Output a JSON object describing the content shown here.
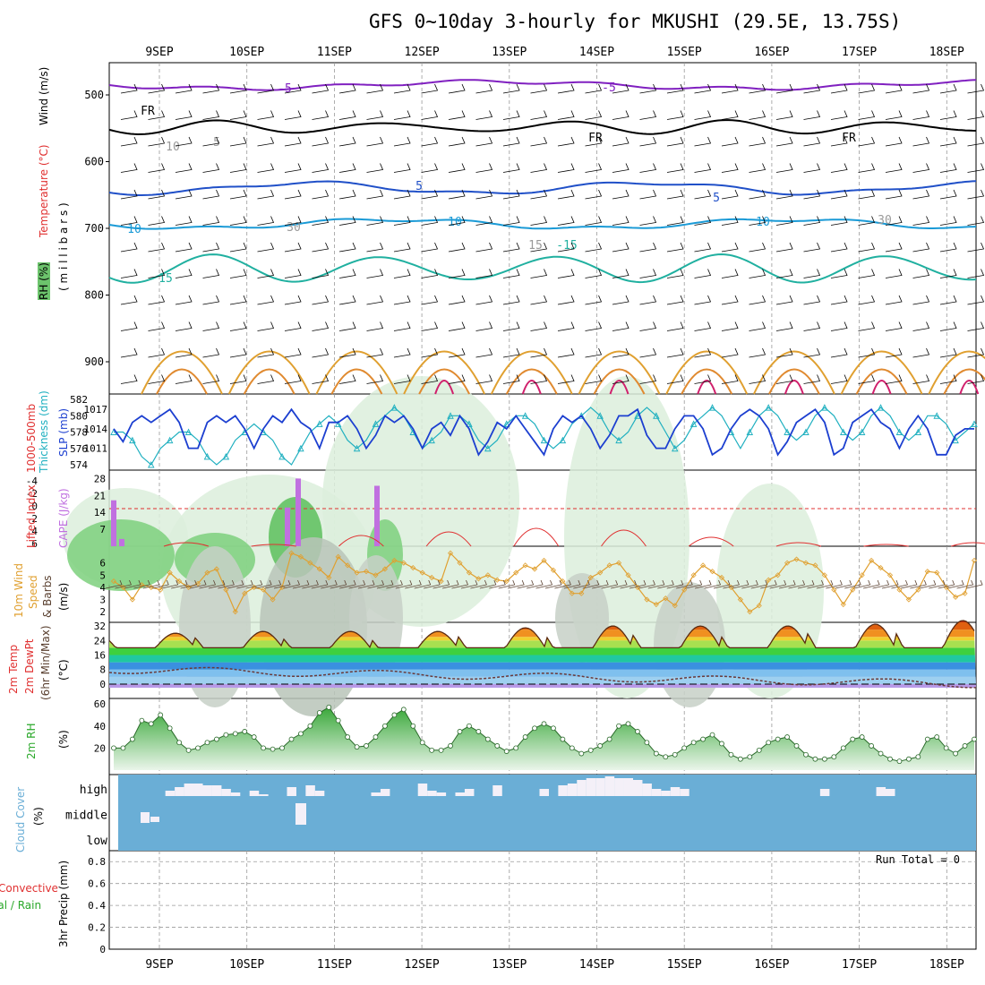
{
  "title": "GFS 0~10day 3-hourly for MKUSHI (29.5E, 13.75S)",
  "dates": [
    "9SEP",
    "10SEP",
    "11SEP",
    "12SEP",
    "13SEP",
    "14SEP",
    "15SEP",
    "16SEP",
    "17SEP",
    "18SEP"
  ],
  "colors": {
    "rh": "#6cc36c",
    "temp5": "#2050c8",
    "temp10": "#1a9ad6",
    "temp15": "#20b0a0",
    "warm": "#e0a030",
    "hot": "#d0206c",
    "cold": "#8020c0",
    "slp": "#1c3fd0",
    "thick": "#20b0c0",
    "cape": "#c070e0",
    "li": "#e03030",
    "wind": "#e0a030",
    "barb": "#5a4030",
    "rh2m": "#5aa85a",
    "cloud": "#6aaed6"
  },
  "panels": {
    "upper": {
      "axis_label_rh": "RH (%)",
      "axis_label_temp": "Temperature (°C)",
      "axis_label_wind": "Wind (m/s)",
      "axis_label_mb": "( m i l l i b a r s )",
      "pressure_ticks": [
        500,
        600,
        700,
        800,
        900
      ],
      "contour_labels": [
        "FR",
        "FR",
        "FR",
        "-5",
        "-5",
        "5",
        "5",
        "10",
        "10",
        "10",
        "15",
        "-15",
        "15",
        "30",
        "30",
        "10",
        "5"
      ]
    },
    "slp": {
      "label_left": "Thickness (dm)",
      "label_left2": "1000-500mb",
      "label_right": "SLP (mb)",
      "left_ticks": [
        "582",
        "580",
        "578",
        "576",
        "574"
      ],
      "right_ticks": [
        "1017",
        "1014",
        "1011"
      ]
    },
    "cape": {
      "label_li": "Lifted Index",
      "label_cape": "CAPE (J/kg)",
      "li_ticks": [
        "-4",
        "-2",
        "0",
        "2",
        "4",
        "6"
      ],
      "cape_ticks": [
        "28",
        "21",
        "14",
        "7"
      ]
    },
    "wind10": {
      "label": "10m Wind",
      "label2": "Speed",
      "label3": "& Barbs",
      "unit": "(m/s)",
      "ticks": [
        "6",
        "5",
        "4",
        "3",
        "2"
      ]
    },
    "temp2m": {
      "label": "2m Temp",
      "label2": "2m DewPt",
      "label3": "(6hr Min/Max)",
      "unit": "(°C)",
      "ticks": [
        "32",
        "24",
        "16",
        "8",
        "0"
      ]
    },
    "rh2m": {
      "label": "2m RH",
      "unit": "(%)",
      "ticks": [
        "60",
        "40",
        "20"
      ]
    },
    "cloud": {
      "label": "Cloud Cover",
      "unit": "(%)",
      "levels": [
        "high",
        "middle",
        "low"
      ]
    },
    "precip": {
      "label": "3hr Precip (mm)",
      "label_total": "Total / Rain",
      "label_conv": "Convective",
      "ticks": [
        "0.8",
        "0.6",
        "0.4",
        "0.2",
        "0"
      ],
      "run_total": "Run Total = 0"
    }
  },
  "chart_data": [
    {
      "type": "line",
      "panel": "slp_thickness",
      "x_step_hours": 3,
      "slp_mb": [
        1014,
        1012,
        1015,
        1016,
        1015,
        1016,
        1017,
        1015,
        1011,
        1011,
        1015,
        1016,
        1015,
        1016,
        1014,
        1011,
        1014,
        1016,
        1015,
        1017,
        1015,
        1014,
        1011,
        1015,
        1015,
        1016,
        1014,
        1011,
        1013,
        1016,
        1015,
        1016,
        1014,
        1011,
        1014,
        1015,
        1013,
        1016,
        1014,
        1010,
        1012,
        1015,
        1014,
        1016,
        1014,
        1012,
        1010,
        1014,
        1016,
        1015,
        1016,
        1014,
        1011,
        1013,
        1016,
        1016,
        1017,
        1013,
        1011,
        1011,
        1014,
        1016,
        1016,
        1014,
        1010,
        1011,
        1014,
        1016,
        1017,
        1016,
        1014,
        1010,
        1012,
        1015,
        1016,
        1017,
        1015,
        1010,
        1011,
        1015,
        1016,
        1017,
        1015,
        1014,
        1011,
        1014,
        1016,
        1014,
        1010,
        1010,
        1013,
        1014,
        1014
      ],
      "thickness_dm": [
        578,
        578,
        577,
        575,
        574,
        576,
        577,
        578,
        578,
        577,
        575,
        574,
        575,
        577,
        578,
        579,
        578,
        577,
        575,
        574,
        576,
        578,
        579,
        580,
        579,
        577,
        576,
        577,
        579,
        580,
        581,
        580,
        578,
        576,
        577,
        578,
        580,
        580,
        579,
        577,
        576,
        577,
        579,
        580,
        580,
        579,
        577,
        576,
        577,
        579,
        580,
        581,
        580,
        578,
        577,
        578,
        580,
        581,
        580,
        578,
        576,
        577,
        579,
        580,
        581,
        580,
        578,
        576,
        578,
        580,
        581,
        580,
        578,
        577,
        578,
        580,
        581,
        580,
        578,
        577,
        578,
        580,
        581,
        580,
        578,
        577,
        578,
        580,
        580,
        579,
        577,
        578,
        579
      ]
    },
    {
      "type": "bar",
      "panel": "cape_lifted_index",
      "cape_spikes": [
        {
          "day": "9SEP",
          "cape": 19
        },
        {
          "day": "9SEP",
          "cape": 3
        },
        {
          "day": "10SEP",
          "cape": 16
        },
        {
          "day": "10SEP",
          "cape": 28
        },
        {
          "day": "11SEP",
          "cape": 25
        }
      ]
    },
    {
      "type": "line",
      "panel": "wind10m",
      "speed_ms": [
        4.5,
        4.0,
        3.0,
        4.2,
        4.0,
        3.8,
        5.2,
        4.5,
        4.0,
        4.3,
        5.2,
        5.5,
        3.8,
        2.0,
        3.5,
        4.0,
        3.8,
        3.0,
        4.0,
        6.8,
        6.5,
        6.0,
        5.5,
        4.8,
        6.5,
        5.8,
        5.2,
        5.3,
        5.0,
        5.5,
        6.2,
        6.0,
        5.6,
        5.2,
        4.8,
        4.5,
        6.8,
        6.0,
        5.2,
        4.7,
        5.0,
        4.6,
        4.5,
        5.2,
        5.8,
        5.5,
        6.2,
        5.4,
        4.5,
        3.5,
        3.5,
        4.8,
        5.2,
        5.8,
        6.0,
        5.0,
        4.0,
        3.0,
        2.6,
        3.1,
        2.5,
        3.8,
        5.0,
        5.8,
        5.3,
        4.8,
        4.0,
        3.0,
        2.0,
        2.5,
        4.6,
        5.0,
        6.0,
        6.3,
        6.0,
        5.8,
        5.0,
        3.8,
        2.6,
        3.8,
        5.0,
        6.2,
        5.6,
        5.0,
        3.8,
        3.0,
        3.8,
        5.3,
        5.2,
        4.0,
        3.2,
        3.5,
        6.2
      ]
    },
    {
      "type": "line",
      "panel": "rh2m",
      "rh_pct": [
        20,
        20,
        28,
        45,
        42,
        50,
        38,
        25,
        18,
        20,
        25,
        28,
        32,
        33,
        35,
        30,
        20,
        19,
        20,
        28,
        33,
        40,
        52,
        57,
        45,
        30,
        21,
        22,
        30,
        40,
        50,
        55,
        40,
        25,
        18,
        18,
        22,
        35,
        40,
        35,
        28,
        22,
        17,
        20,
        30,
        38,
        42,
        38,
        28,
        20,
        15,
        18,
        22,
        28,
        40,
        42,
        35,
        25,
        15,
        12,
        14,
        20,
        25,
        28,
        32,
        24,
        14,
        10,
        12,
        18,
        25,
        28,
        30,
        22,
        14,
        10,
        10,
        12,
        20,
        28,
        30,
        22,
        15,
        10,
        8,
        10,
        12,
        28,
        30,
        20,
        15,
        22,
        28
      ]
    }
  ]
}
